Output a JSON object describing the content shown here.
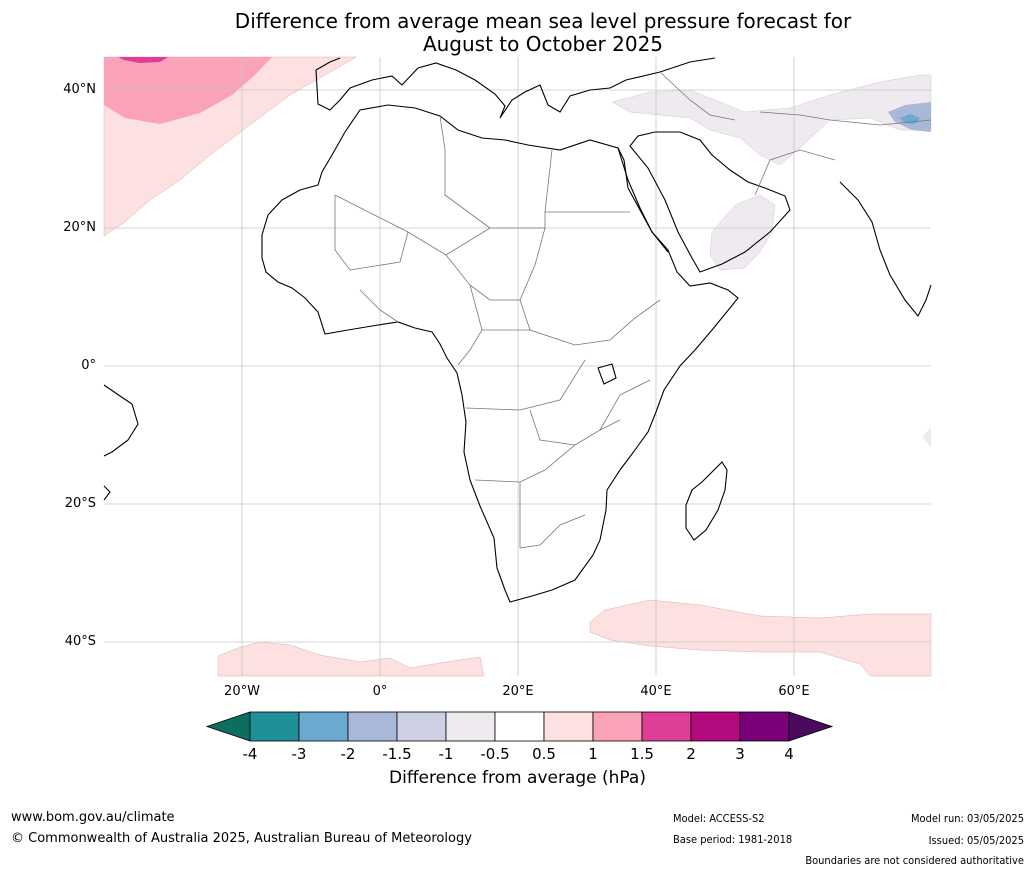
{
  "title": {
    "line1": "Difference from average mean sea level pressure forecast for",
    "line2": "August to October 2025"
  },
  "map": {
    "region": "Africa",
    "lat_labels": [
      "40°N",
      "20°N",
      "0°",
      "20°S",
      "40°S"
    ],
    "lon_labels": [
      "20°W",
      "0°",
      "20°E",
      "40°E",
      "60°E"
    ]
  },
  "colorbar": {
    "ticks": [
      "-4",
      "-3",
      "-2",
      "-1.5",
      "-1",
      "-0.5",
      "0.5",
      "1",
      "1.5",
      "2",
      "3",
      "4"
    ],
    "colors": [
      "#0b6e5e",
      "#1f8f98",
      "#6aaad1",
      "#a7b8d8",
      "#cdd0e3",
      "#eeeaf0",
      "#ffffff",
      "#fde0e0",
      "#f9a2b8",
      "#de3d98",
      "#b30a7d",
      "#7a017a",
      "#4a0a5e"
    ],
    "label": "Difference from average (hPa)"
  },
  "footer": {
    "website": "www.bom.gov.au/climate",
    "copyright": "© Commonwealth of Australia 2025, Australian Bureau of Meteorology",
    "model": "Model: ACCESS-S2",
    "base_period": "Base period: 1981-2018",
    "model_run": "Model run: 03/05/2025",
    "issued": "Issued: 05/05/2025",
    "disclaimer": "Boundaries are not considered authoritative"
  }
}
